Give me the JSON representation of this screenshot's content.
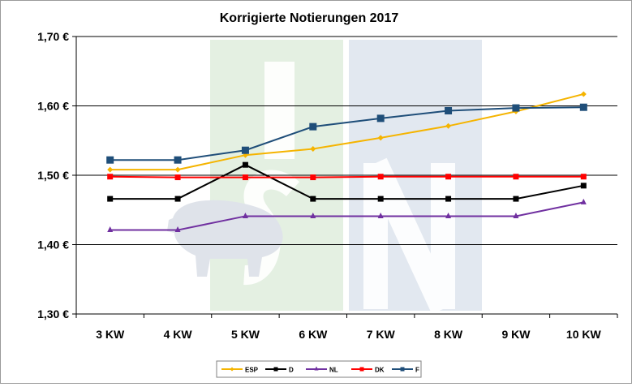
{
  "chart_data": {
    "type": "line",
    "title": "Korrigierte Notierungen 2017",
    "xlabel": "",
    "ylabel": "",
    "categories": [
      "3 KW",
      "4 KW",
      "5 KW",
      "6 KW",
      "7 KW",
      "8 KW",
      "9 KW",
      "10 KW"
    ],
    "ylim": [
      1.3,
      1.7
    ],
    "yticks": [
      "1,30 €",
      "1,40 €",
      "1,50 €",
      "1,60 €",
      "1,70 €"
    ],
    "grid": true,
    "legend_position": "bottom",
    "series": [
      {
        "name": "ESP",
        "color": "#f5b400",
        "marker": "diamond",
        "values": [
          1.508,
          1.508,
          1.529,
          1.538,
          1.554,
          1.571,
          1.592,
          1.617
        ]
      },
      {
        "name": "D",
        "color": "#000000",
        "marker": "square",
        "values": [
          1.466,
          1.466,
          1.515,
          1.466,
          1.466,
          1.466,
          1.466,
          1.485
        ]
      },
      {
        "name": "NL",
        "color": "#7030a0",
        "marker": "triangle",
        "values": [
          1.421,
          1.421,
          1.441,
          1.441,
          1.441,
          1.441,
          1.441,
          1.461
        ]
      },
      {
        "name": "DK",
        "color": "#ff0000",
        "marker": "square",
        "values": [
          1.498,
          1.497,
          1.497,
          1.497,
          1.498,
          1.498,
          1.498,
          1.498
        ]
      },
      {
        "name": "F",
        "color": "#1f4e79",
        "marker": "square",
        "values": [
          1.522,
          1.522,
          1.536,
          1.57,
          1.582,
          1.593,
          1.597,
          1.598
        ]
      }
    ]
  }
}
